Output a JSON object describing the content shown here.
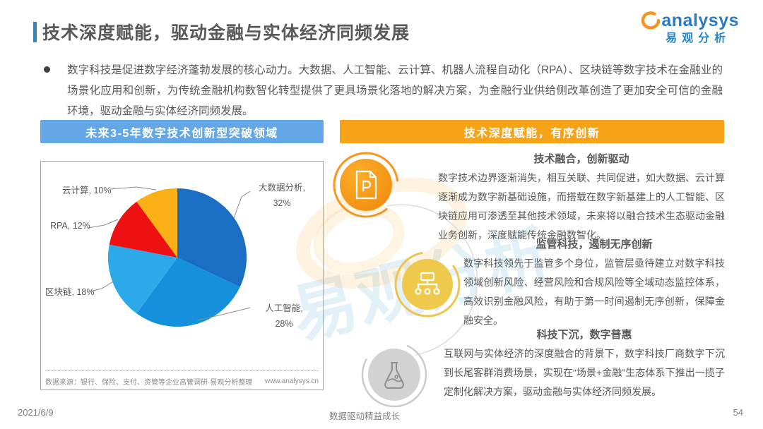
{
  "header": {
    "title": "技术深度赋能，驱动金融与实体经济同频发展",
    "logo": {
      "brand": "analysys",
      "brand_cn": "易观分析"
    }
  },
  "intro": {
    "bullet_text": "数字科技是促进数字经济蓬勃发展的核心动力。大数据、人工智能、云计算、机器人流程自动化（RPA）、区块链等数字技术在金融业的场景化应用和创新，为传统金融机构数智化转型提供了更具场景化落地的解决方案，为金融行业供给侧改革创造了更加安全可信的金融环境，驱动金融与实体经济同频发展。"
  },
  "left_panel": {
    "header": "未来3-5年数字技术创新型突破领域",
    "accent_color": "#63A7E6",
    "source": "数据来源：银行、保险、支付、资管等企业高管调研·易观分析整理",
    "website": "www.analysys.cn"
  },
  "chart_data": {
    "type": "pie",
    "title": "未来3-5年数字技术创新型突破领域",
    "start_angle_deg": 0,
    "direction": "clockwise",
    "legend_position": "callout-labels",
    "slices": [
      {
        "label": "大数据分析",
        "value": 32,
        "color": "#1A6FC5"
      },
      {
        "label": "人工智能",
        "value": 28,
        "color": "#1590DC"
      },
      {
        "label": "区块链",
        "value": 18,
        "color": "#2BA9E8"
      },
      {
        "label": "RPA",
        "value": 12,
        "color": "#EE1111"
      },
      {
        "label": "云计算",
        "value": 10,
        "color": "#F9B016"
      }
    ]
  },
  "chart_callouts": {
    "bigdata_l1": "大数据分析,",
    "bigdata_l2": "32%",
    "ai_l1": "人工智能,",
    "ai_l2": "28%",
    "blockchain": "区块链, 18%",
    "rpa": "RPA, 12%",
    "cloud": "云计算, 10%"
  },
  "right_panel": {
    "header": "技术深度赋能，有序创新",
    "accent_color": "#F6A318",
    "sections": [
      {
        "heading": "技术融合，创新驱动",
        "icon": "document-p-icon",
        "body": "数字技术边界逐渐消失，相互关联、共同促进，如大数据、云计算逐渐成为数字新基础设施，而搭载在数字新基建上的人工智能、区块链应用可渗透至其他技术领域，未来将以融合技术生态驱动金融业务创新，深度赋能传统金融数智化。"
      },
      {
        "heading": "监管科技，遏制无序创新",
        "icon": "sitemap-icon",
        "body": "数字科技领先于监管多个身位，监管层亟待建立对数字科技领域创新风险、经营风险和合规风险等全域动态监控体系，高效识别金融风险，有助于第一时间遏制无序创新，保障金融安全。"
      },
      {
        "heading": "科技下沉，数字普惠",
        "icon": "flask-icon",
        "body": "互联网与实体经济的深度融合的背景下，数字科技厂商数字下沉到长尾客群消费场景，实现在“场景+金融”生态体系下推出一揽子定制化解决方案，驱动金融与实体经济同频发展。"
      }
    ]
  },
  "watermark": {
    "text_cn": "易观分析"
  },
  "footer": {
    "date": "2021/6/9",
    "slogan": "数据驱动精益成长",
    "page_number": "54"
  }
}
